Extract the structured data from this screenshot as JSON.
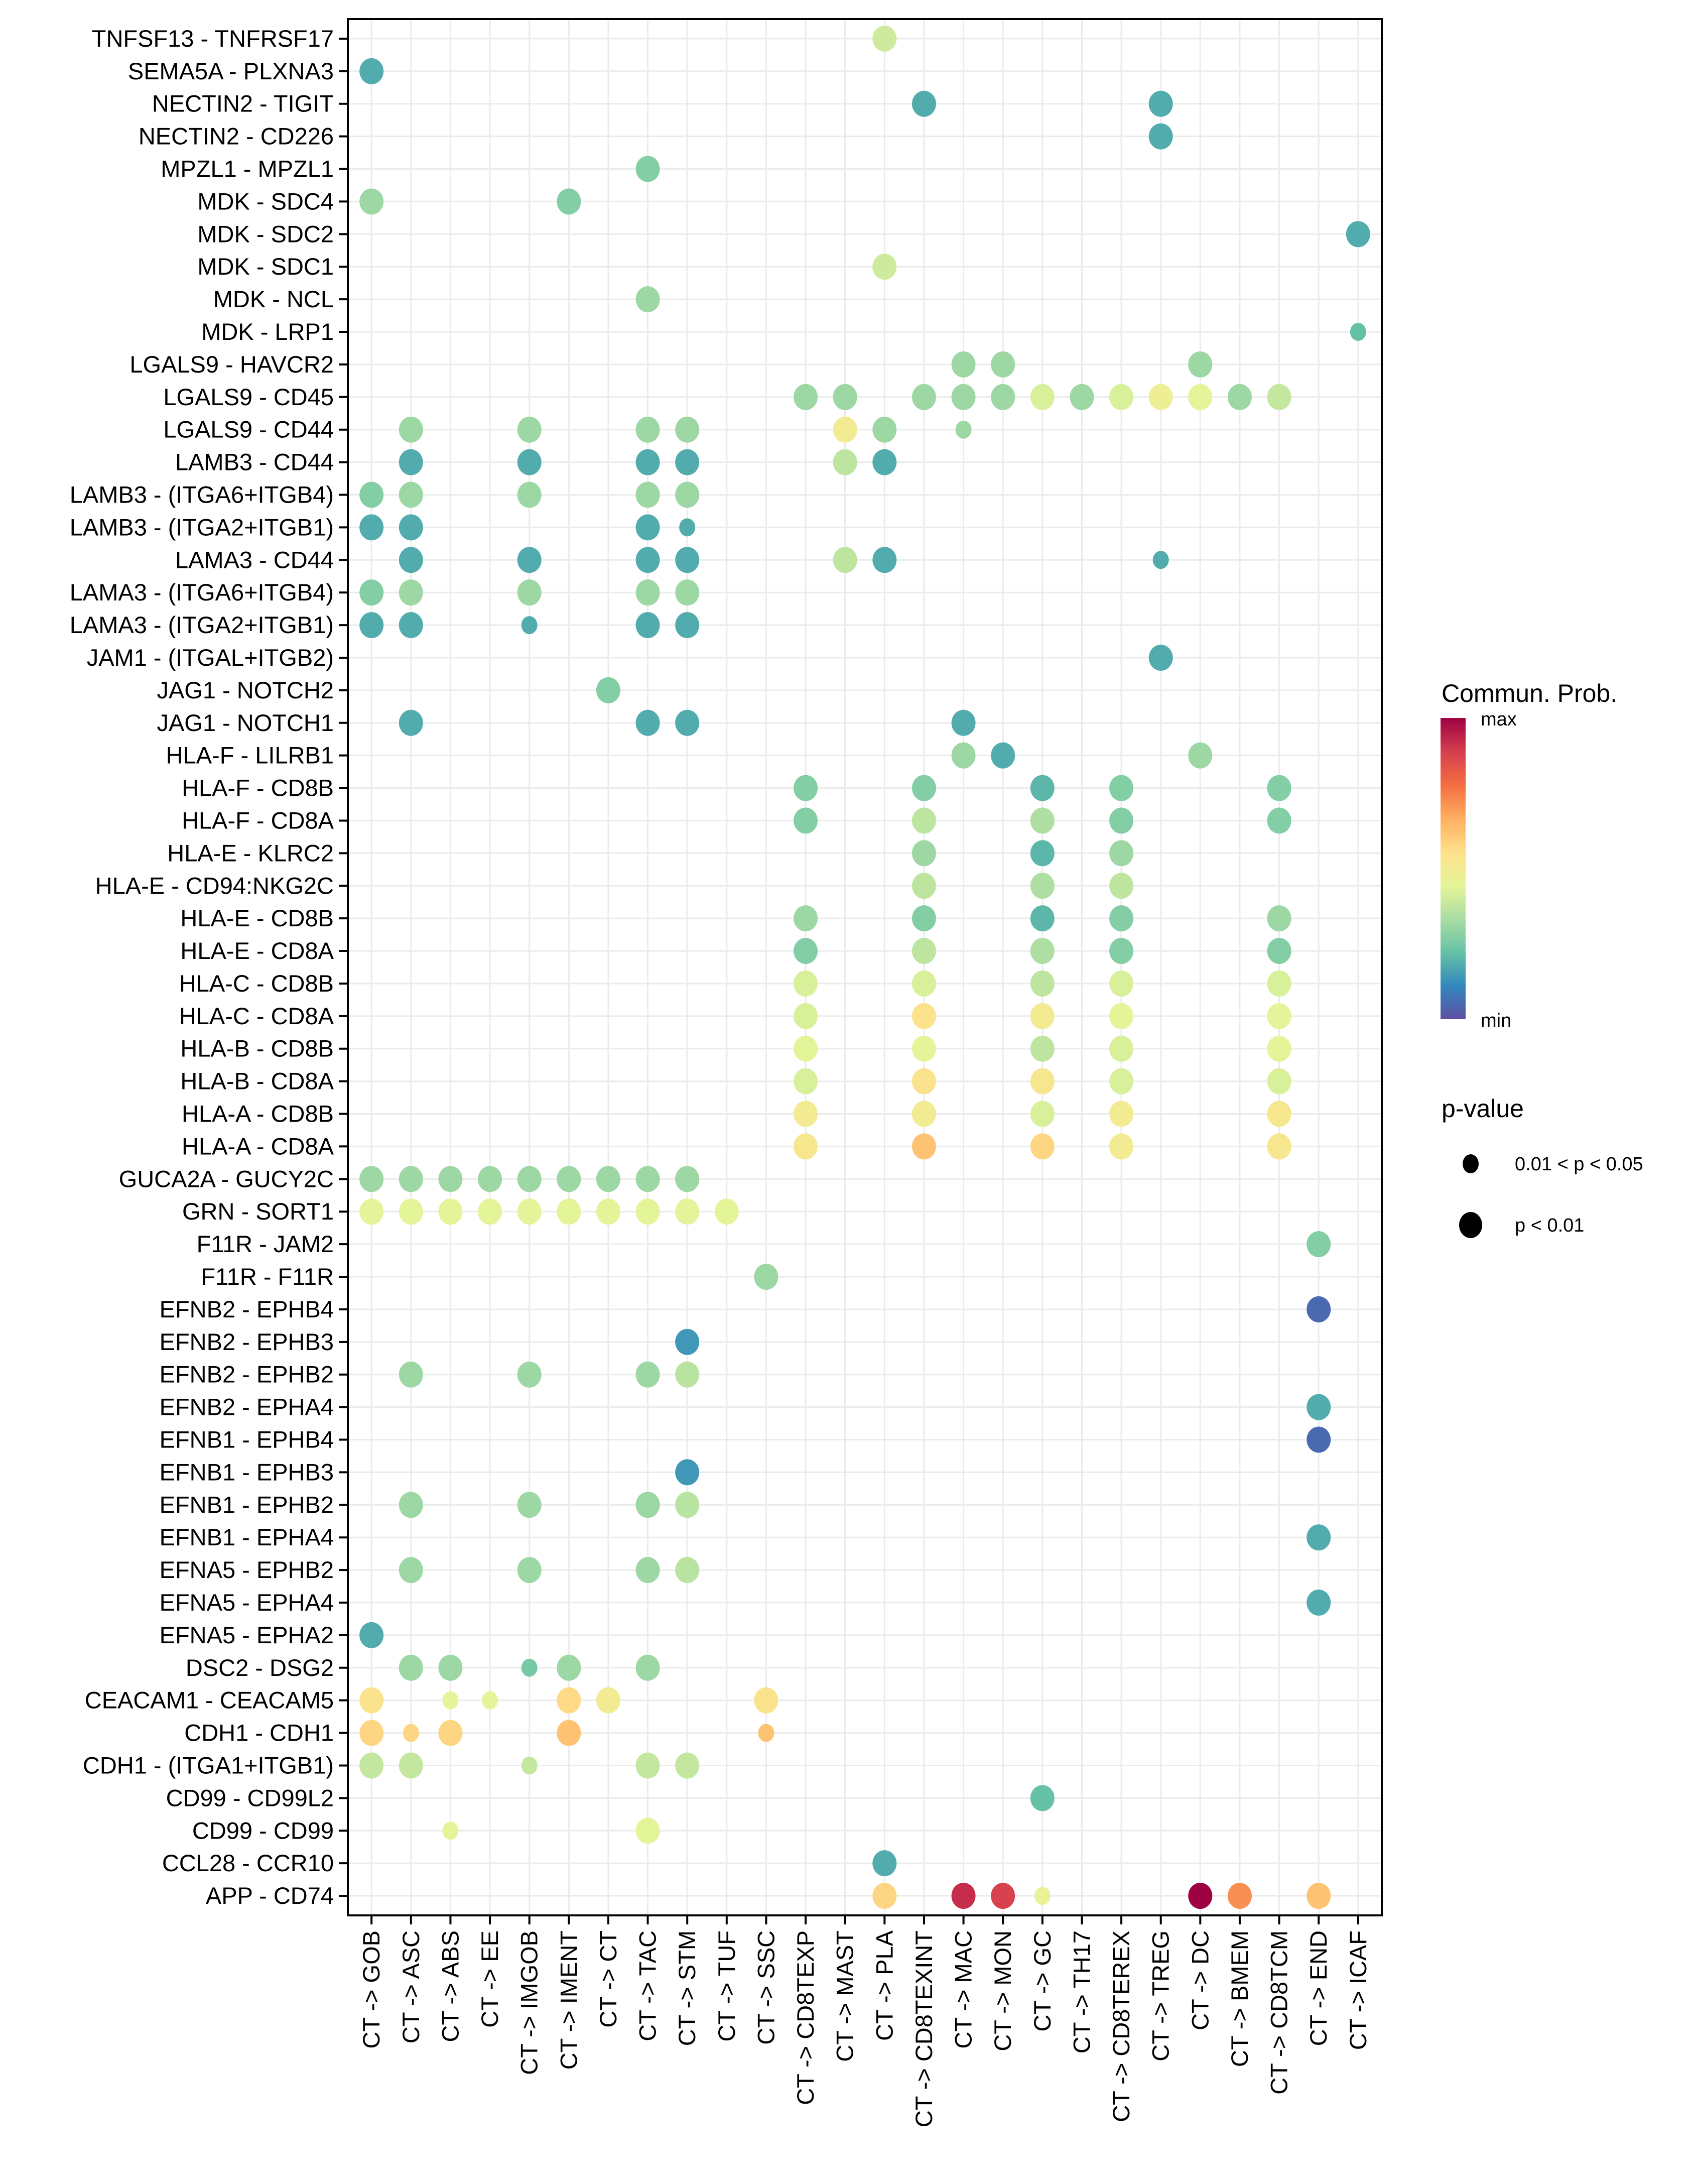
{
  "chart_data": {
    "type": "scatter",
    "subtype": "dot-plot",
    "title": "",
    "xlabel": "",
    "ylabel": "",
    "grid": true,
    "legend_position": "right",
    "x_categories": [
      "CT -> GOB",
      "CT -> ASC",
      "CT -> ABS",
      "CT -> EE",
      "CT -> IMGOB",
      "CT -> IMENT",
      "CT -> CT",
      "CT -> TAC",
      "CT -> STM",
      "CT -> TUF",
      "CT -> SSC",
      "CT -> CD8TEXP",
      "CT -> MAST",
      "CT -> PLA",
      "CT -> CD8TEXINT",
      "CT -> MAC",
      "CT -> MON",
      "CT -> GC",
      "CT -> TH17",
      "CT -> CD8TEREX",
      "CT -> TREG",
      "CT -> DC",
      "CT -> BMEM",
      "CT -> CD8TCM",
      "CT -> END",
      "CT -> ICAF"
    ],
    "y_categories": [
      "TNFSF13 - TNFRSF17",
      "SEMA5A - PLXNA3",
      "NECTIN2 - TIGIT",
      "NECTIN2 - CD226",
      "MPZL1 - MPZL1",
      "MDK - SDC4",
      "MDK - SDC2",
      "MDK - SDC1",
      "MDK - NCL",
      "MDK - LRP1",
      "LGALS9 - HAVCR2",
      "LGALS9 - CD45",
      "LGALS9 - CD44",
      "LAMB3 - CD44",
      "LAMB3 - (ITGA6+ITGB4)",
      "LAMB3 - (ITGA2+ITGB1)",
      "LAMA3 - CD44",
      "LAMA3 - (ITGA6+ITGB4)",
      "LAMA3 - (ITGA2+ITGB1)",
      "JAM1 - (ITGAL+ITGB2)",
      "JAG1 - NOTCH2",
      "JAG1 - NOTCH1",
      "HLA-F - LILRB1",
      "HLA-F - CD8B",
      "HLA-F - CD8A",
      "HLA-E - KLRC2",
      "HLA-E - CD94:NKG2C",
      "HLA-E - CD8B",
      "HLA-E - CD8A",
      "HLA-C - CD8B",
      "HLA-C - CD8A",
      "HLA-B - CD8B",
      "HLA-B - CD8A",
      "HLA-A - CD8B",
      "HLA-A - CD8A",
      "GUCA2A - GUCY2C",
      "GRN - SORT1",
      "F11R - JAM2",
      "F11R - F11R",
      "EFNB2 - EPHB4",
      "EFNB2 - EPHB3",
      "EFNB2 - EPHB2",
      "EFNB2 - EPHA4",
      "EFNB1 - EPHB4",
      "EFNB1 - EPHB3",
      "EFNB1 - EPHB2",
      "EFNB1 - EPHA4",
      "EFNA5 - EPHB2",
      "EFNA5 - EPHA4",
      "EFNA5 - EPHA2",
      "DSC2 - DSG2",
      "CEACAM1 - CEACAM5",
      "CDH1 - CDH1",
      "CDH1 - (ITGA1+ITGB1)",
      "CD99 - CD99L2",
      "CD99 - CD99",
      "CCL28 - CCR10",
      "APP - CD74"
    ],
    "color_legend": {
      "title": "Commun. Prob.",
      "max_label": "max",
      "min_label": "min",
      "palette": [
        "#5e4fa2",
        "#3288bd",
        "#66c2a5",
        "#abdda4",
        "#e6f598",
        "#fee08b",
        "#fdae61",
        "#f46d43",
        "#d53e4f",
        "#9e0142"
      ]
    },
    "size_legend": {
      "title": "p-value",
      "items": [
        {
          "label": "0.01 < p < 0.05",
          "level": "small"
        },
        {
          "label": "p < 0.01",
          "level": "large"
        }
      ]
    },
    "points_format": [
      "row_index",
      "col_index",
      "commun_prob_relative_0_to_1",
      "p_level_1_is_p<0.01_0_is_0.01<p<0.05"
    ],
    "points": [
      [
        0,
        13,
        0.4,
        1
      ],
      [
        1,
        0,
        0.18,
        1
      ],
      [
        2,
        14,
        0.18,
        1
      ],
      [
        2,
        20,
        0.18,
        1
      ],
      [
        3,
        20,
        0.18,
        1
      ],
      [
        4,
        7,
        0.27,
        1
      ],
      [
        5,
        0,
        0.31,
        1
      ],
      [
        5,
        5,
        0.27,
        1
      ],
      [
        6,
        25,
        0.18,
        1
      ],
      [
        7,
        13,
        0.4,
        1
      ],
      [
        8,
        7,
        0.31,
        1
      ],
      [
        9,
        25,
        0.22,
        0
      ],
      [
        10,
        15,
        0.31,
        1
      ],
      [
        10,
        16,
        0.31,
        1
      ],
      [
        10,
        21,
        0.31,
        1
      ],
      [
        11,
        11,
        0.31,
        1
      ],
      [
        11,
        12,
        0.31,
        1
      ],
      [
        11,
        14,
        0.31,
        1
      ],
      [
        11,
        15,
        0.31,
        1
      ],
      [
        11,
        16,
        0.31,
        1
      ],
      [
        11,
        17,
        0.42,
        1
      ],
      [
        11,
        18,
        0.31,
        1
      ],
      [
        11,
        19,
        0.42,
        1
      ],
      [
        11,
        20,
        0.48,
        1
      ],
      [
        11,
        21,
        0.44,
        1
      ],
      [
        11,
        22,
        0.31,
        1
      ],
      [
        11,
        23,
        0.38,
        1
      ],
      [
        12,
        1,
        0.31,
        1
      ],
      [
        12,
        4,
        0.31,
        1
      ],
      [
        12,
        7,
        0.31,
        1
      ],
      [
        12,
        8,
        0.31,
        1
      ],
      [
        12,
        12,
        0.5,
        1
      ],
      [
        12,
        13,
        0.31,
        1
      ],
      [
        12,
        15,
        0.31,
        0
      ],
      [
        13,
        1,
        0.18,
        1
      ],
      [
        13,
        4,
        0.18,
        1
      ],
      [
        13,
        7,
        0.18,
        1
      ],
      [
        13,
        8,
        0.18,
        1
      ],
      [
        13,
        12,
        0.37,
        1
      ],
      [
        13,
        13,
        0.18,
        1
      ],
      [
        14,
        0,
        0.27,
        1
      ],
      [
        14,
        1,
        0.31,
        1
      ],
      [
        14,
        4,
        0.31,
        1
      ],
      [
        14,
        7,
        0.31,
        1
      ],
      [
        14,
        8,
        0.31,
        1
      ],
      [
        15,
        0,
        0.18,
        1
      ],
      [
        15,
        1,
        0.18,
        1
      ],
      [
        15,
        7,
        0.18,
        1
      ],
      [
        15,
        8,
        0.18,
        0
      ],
      [
        16,
        1,
        0.18,
        1
      ],
      [
        16,
        4,
        0.18,
        1
      ],
      [
        16,
        7,
        0.18,
        1
      ],
      [
        16,
        8,
        0.18,
        1
      ],
      [
        16,
        12,
        0.37,
        1
      ],
      [
        16,
        13,
        0.18,
        1
      ],
      [
        16,
        20,
        0.18,
        0
      ],
      [
        17,
        0,
        0.27,
        1
      ],
      [
        17,
        1,
        0.31,
        1
      ],
      [
        17,
        4,
        0.31,
        1
      ],
      [
        17,
        7,
        0.31,
        1
      ],
      [
        17,
        8,
        0.31,
        1
      ],
      [
        18,
        0,
        0.18,
        1
      ],
      [
        18,
        1,
        0.18,
        1
      ],
      [
        18,
        4,
        0.18,
        0
      ],
      [
        18,
        7,
        0.18,
        1
      ],
      [
        18,
        8,
        0.18,
        1
      ],
      [
        19,
        20,
        0.18,
        1
      ],
      [
        20,
        6,
        0.27,
        1
      ],
      [
        21,
        1,
        0.18,
        1
      ],
      [
        21,
        7,
        0.18,
        1
      ],
      [
        21,
        8,
        0.18,
        1
      ],
      [
        21,
        15,
        0.18,
        1
      ],
      [
        22,
        15,
        0.31,
        1
      ],
      [
        22,
        16,
        0.18,
        1
      ],
      [
        22,
        21,
        0.31,
        1
      ],
      [
        23,
        11,
        0.27,
        1
      ],
      [
        23,
        14,
        0.27,
        1
      ],
      [
        23,
        17,
        0.2,
        1
      ],
      [
        23,
        19,
        0.27,
        1
      ],
      [
        23,
        23,
        0.27,
        1
      ],
      [
        24,
        11,
        0.27,
        1
      ],
      [
        24,
        14,
        0.37,
        1
      ],
      [
        24,
        17,
        0.34,
        1
      ],
      [
        24,
        19,
        0.27,
        1
      ],
      [
        24,
        23,
        0.27,
        1
      ],
      [
        25,
        14,
        0.31,
        1
      ],
      [
        25,
        17,
        0.2,
        1
      ],
      [
        25,
        19,
        0.31,
        1
      ],
      [
        26,
        14,
        0.37,
        1
      ],
      [
        26,
        17,
        0.34,
        1
      ],
      [
        26,
        19,
        0.37,
        1
      ],
      [
        27,
        11,
        0.31,
        1
      ],
      [
        27,
        14,
        0.27,
        1
      ],
      [
        27,
        17,
        0.2,
        1
      ],
      [
        27,
        19,
        0.27,
        1
      ],
      [
        27,
        23,
        0.31,
        1
      ],
      [
        28,
        11,
        0.27,
        1
      ],
      [
        28,
        14,
        0.37,
        1
      ],
      [
        28,
        17,
        0.34,
        1
      ],
      [
        28,
        19,
        0.27,
        1
      ],
      [
        28,
        23,
        0.27,
        1
      ],
      [
        29,
        11,
        0.42,
        1
      ],
      [
        29,
        14,
        0.42,
        1
      ],
      [
        29,
        17,
        0.37,
        1
      ],
      [
        29,
        19,
        0.42,
        1
      ],
      [
        29,
        23,
        0.42,
        1
      ],
      [
        30,
        11,
        0.42,
        1
      ],
      [
        30,
        14,
        0.54,
        1
      ],
      [
        30,
        17,
        0.5,
        1
      ],
      [
        30,
        19,
        0.44,
        1
      ],
      [
        30,
        23,
        0.44,
        1
      ],
      [
        31,
        11,
        0.44,
        1
      ],
      [
        31,
        14,
        0.44,
        1
      ],
      [
        31,
        17,
        0.37,
        1
      ],
      [
        31,
        19,
        0.42,
        1
      ],
      [
        31,
        23,
        0.44,
        1
      ],
      [
        32,
        11,
        0.42,
        1
      ],
      [
        32,
        14,
        0.54,
        1
      ],
      [
        32,
        17,
        0.52,
        1
      ],
      [
        32,
        19,
        0.42,
        1
      ],
      [
        32,
        23,
        0.42,
        1
      ],
      [
        33,
        11,
        0.5,
        1
      ],
      [
        33,
        14,
        0.5,
        1
      ],
      [
        33,
        17,
        0.42,
        1
      ],
      [
        33,
        19,
        0.5,
        1
      ],
      [
        33,
        23,
        0.52,
        1
      ],
      [
        34,
        11,
        0.52,
        1
      ],
      [
        34,
        14,
        0.62,
        1
      ],
      [
        34,
        17,
        0.58,
        1
      ],
      [
        34,
        19,
        0.5,
        1
      ],
      [
        34,
        23,
        0.52,
        1
      ],
      [
        35,
        0,
        0.31,
        1
      ],
      [
        35,
        1,
        0.31,
        1
      ],
      [
        35,
        2,
        0.31,
        1
      ],
      [
        35,
        3,
        0.31,
        1
      ],
      [
        35,
        4,
        0.31,
        1
      ],
      [
        35,
        5,
        0.31,
        1
      ],
      [
        35,
        6,
        0.31,
        1
      ],
      [
        35,
        7,
        0.31,
        1
      ],
      [
        35,
        8,
        0.31,
        1
      ],
      [
        36,
        0,
        0.44,
        1
      ],
      [
        36,
        1,
        0.44,
        1
      ],
      [
        36,
        2,
        0.44,
        1
      ],
      [
        36,
        3,
        0.44,
        1
      ],
      [
        36,
        4,
        0.44,
        1
      ],
      [
        36,
        5,
        0.44,
        1
      ],
      [
        36,
        6,
        0.44,
        1
      ],
      [
        36,
        7,
        0.44,
        1
      ],
      [
        36,
        8,
        0.44,
        1
      ],
      [
        36,
        9,
        0.44,
        1
      ],
      [
        37,
        24,
        0.27,
        1
      ],
      [
        38,
        10,
        0.31,
        1
      ],
      [
        39,
        24,
        0.05,
        1
      ],
      [
        40,
        8,
        0.14,
        1
      ],
      [
        41,
        1,
        0.31,
        1
      ],
      [
        41,
        4,
        0.31,
        1
      ],
      [
        41,
        7,
        0.31,
        1
      ],
      [
        41,
        8,
        0.36,
        1
      ],
      [
        42,
        24,
        0.18,
        1
      ],
      [
        43,
        24,
        0.05,
        1
      ],
      [
        44,
        8,
        0.14,
        1
      ],
      [
        45,
        1,
        0.31,
        1
      ],
      [
        45,
        4,
        0.31,
        1
      ],
      [
        45,
        7,
        0.31,
        1
      ],
      [
        45,
        8,
        0.36,
        1
      ],
      [
        46,
        24,
        0.18,
        1
      ],
      [
        47,
        1,
        0.31,
        1
      ],
      [
        47,
        4,
        0.31,
        1
      ],
      [
        47,
        7,
        0.31,
        1
      ],
      [
        47,
        8,
        0.36,
        1
      ],
      [
        48,
        24,
        0.18,
        1
      ],
      [
        49,
        0,
        0.18,
        1
      ],
      [
        50,
        1,
        0.31,
        1
      ],
      [
        50,
        2,
        0.31,
        1
      ],
      [
        50,
        4,
        0.25,
        0
      ],
      [
        50,
        5,
        0.31,
        1
      ],
      [
        50,
        7,
        0.31,
        1
      ],
      [
        51,
        0,
        0.54,
        1
      ],
      [
        51,
        2,
        0.44,
        0
      ],
      [
        51,
        3,
        0.44,
        0
      ],
      [
        51,
        5,
        0.57,
        1
      ],
      [
        51,
        6,
        0.5,
        1
      ],
      [
        51,
        10,
        0.54,
        1
      ],
      [
        52,
        0,
        0.58,
        1
      ],
      [
        52,
        1,
        0.58,
        0
      ],
      [
        52,
        2,
        0.58,
        1
      ],
      [
        52,
        5,
        0.62,
        1
      ],
      [
        52,
        10,
        0.62,
        0
      ],
      [
        53,
        0,
        0.38,
        1
      ],
      [
        53,
        1,
        0.38,
        1
      ],
      [
        53,
        4,
        0.38,
        0
      ],
      [
        53,
        7,
        0.38,
        1
      ],
      [
        53,
        8,
        0.38,
        1
      ],
      [
        54,
        17,
        0.22,
        1
      ],
      [
        55,
        2,
        0.44,
        0
      ],
      [
        55,
        7,
        0.44,
        1
      ],
      [
        56,
        13,
        0.18,
        1
      ],
      [
        57,
        13,
        0.58,
        1
      ],
      [
        57,
        15,
        0.92,
        1
      ],
      [
        57,
        16,
        0.88,
        1
      ],
      [
        57,
        17,
        0.46,
        0
      ],
      [
        57,
        21,
        1.0,
        1
      ],
      [
        57,
        22,
        0.72,
        1
      ],
      [
        57,
        24,
        0.62,
        1
      ]
    ]
  }
}
